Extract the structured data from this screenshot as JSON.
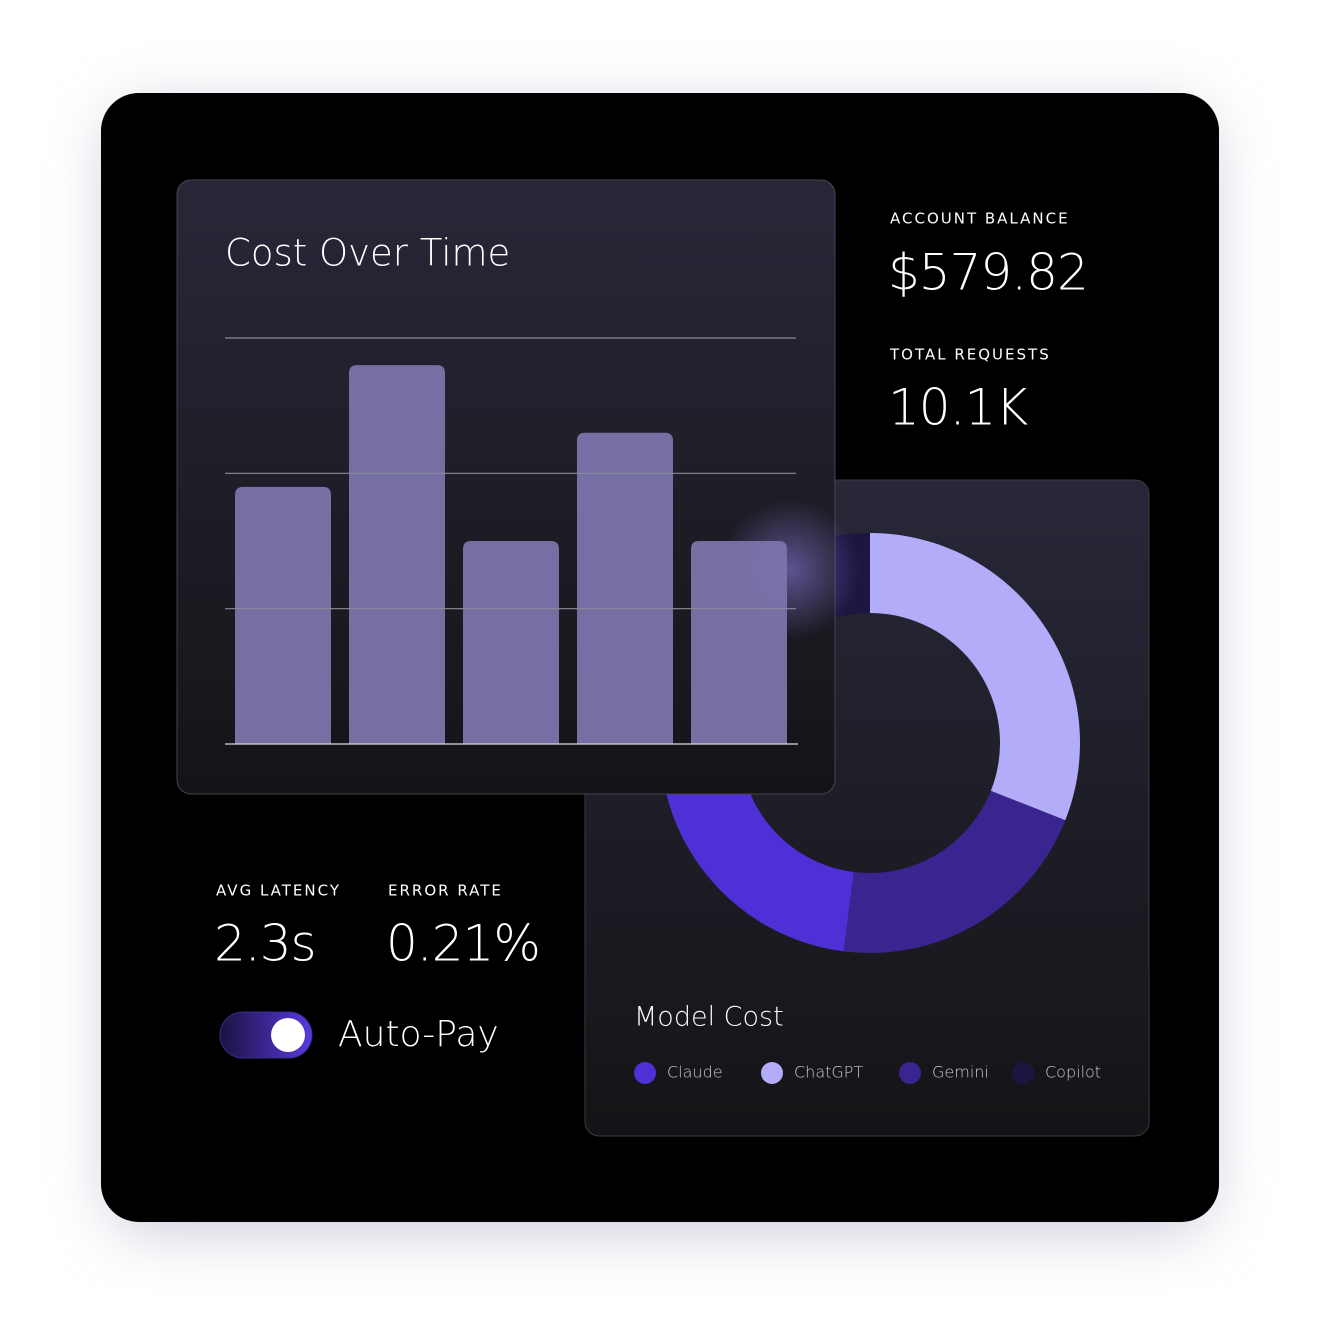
{
  "stats": [
    {
      "label": "ACCOUNT BALANCE",
      "value": "$579.82"
    },
    {
      "label": "TOTAL REQUESTS",
      "value": "10.1K"
    },
    {
      "label": "AVG LATENCY",
      "value": "2.3s"
    },
    {
      "label": "ERROR RATE",
      "value": "0.21%"
    }
  ],
  "toggle": {
    "label": "Auto-Pay",
    "on": true
  },
  "chart_data": [
    {
      "type": "bar",
      "title": "Cost Over Time",
      "values": [
        1.9,
        2.8,
        1.5,
        2.3,
        1.5
      ],
      "color": "#7a74ab",
      "ylim": [
        0,
        3
      ],
      "yticks": [
        0,
        1,
        2,
        3
      ],
      "grid": true
    },
    {
      "type": "pie",
      "title": "Model Cost",
      "categories": [
        "Claude",
        "ChatGPT",
        "Gemini",
        "Copilot"
      ],
      "values": [
        28,
        31,
        21,
        20
      ],
      "colors": [
        "#4f2fd6",
        "#b3adf9",
        "#3a2590",
        "#1c1640"
      ]
    }
  ]
}
